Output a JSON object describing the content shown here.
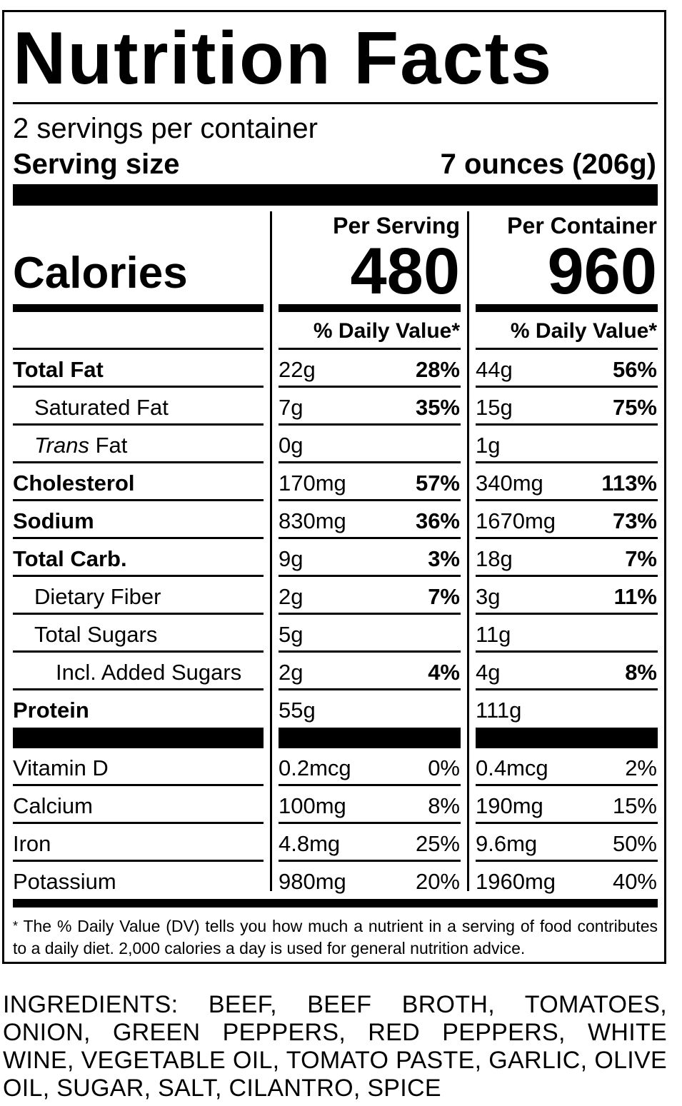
{
  "title": "Nutrition Facts",
  "servings_per_container": "2 servings per container",
  "serving_size_label": "Serving size",
  "serving_size_value": "7 ounces (206g)",
  "columns": {
    "per_serving": "Per Serving",
    "per_container": "Per Container",
    "dv_header": "% Daily Value*"
  },
  "calories": {
    "label": "Calories",
    "per_serving": "480",
    "per_container": "960"
  },
  "nutrients": [
    {
      "name": "Total Fat",
      "style": "bold",
      "serv_amt": "22g",
      "serv_dv": "28%",
      "cont_amt": "44g",
      "cont_dv": "56%"
    },
    {
      "name": "Saturated Fat",
      "style": "indent1",
      "serv_amt": "7g",
      "serv_dv": "35%",
      "cont_amt": "15g",
      "cont_dv": "75%"
    },
    {
      "name": "Fat",
      "name_prefix": "Trans",
      "style": "indent1",
      "serv_amt": "0g",
      "serv_dv": "",
      "cont_amt": "1g",
      "cont_dv": ""
    },
    {
      "name": "Cholesterol",
      "style": "bold",
      "serv_amt": "170mg",
      "serv_dv": "57%",
      "cont_amt": "340mg",
      "cont_dv": "113%"
    },
    {
      "name": "Sodium",
      "style": "bold",
      "serv_amt": "830mg",
      "serv_dv": "36%",
      "cont_amt": "1670mg",
      "cont_dv": "73%"
    },
    {
      "name": "Total Carb.",
      "style": "bold",
      "serv_amt": "9g",
      "serv_dv": "3%",
      "cont_amt": "18g",
      "cont_dv": "7%"
    },
    {
      "name": "Dietary Fiber",
      "style": "indent1",
      "serv_amt": "2g",
      "serv_dv": "7%",
      "cont_amt": "3g",
      "cont_dv": "11%"
    },
    {
      "name": "Total Sugars",
      "style": "indent1",
      "serv_amt": "5g",
      "serv_dv": "",
      "cont_amt": "11g",
      "cont_dv": ""
    },
    {
      "name": "Incl. Added Sugars",
      "style": "indent2",
      "serv_amt": "2g",
      "serv_dv": "4%",
      "cont_amt": "4g",
      "cont_dv": "8%"
    },
    {
      "name": "Protein",
      "style": "bold",
      "serv_amt": "55g",
      "serv_dv": "",
      "cont_amt": "111g",
      "cont_dv": ""
    }
  ],
  "vitamins": [
    {
      "name": "Vitamin D",
      "serv_amt": "0.2mcg",
      "serv_dv": "0%",
      "cont_amt": "0.4mcg",
      "cont_dv": "2%"
    },
    {
      "name": "Calcium",
      "serv_amt": "100mg",
      "serv_dv": "8%",
      "cont_amt": "190mg",
      "cont_dv": "15%"
    },
    {
      "name": "Iron",
      "serv_amt": "4.8mg",
      "serv_dv": "25%",
      "cont_amt": "9.6mg",
      "cont_dv": "50%"
    },
    {
      "name": "Potassium",
      "serv_amt": "980mg",
      "serv_dv": "20%",
      "cont_amt": "1960mg",
      "cont_dv": "40%"
    }
  ],
  "footnote_mark": "*",
  "footnote": "The % Daily Value (DV) tells you how much a nutrient in a serving of food contributes to a daily diet. 2,000 calories a day is used for general nutrition advice.",
  "ingredients": "INGREDIENTS: BEEF, BEEF BROTH, TOMATOES, ONION, GREEN PEPPERS, RED PEPPERS, WHITE WINE, VEGETABLE OIL, TOMATO PASTE, GARLIC, OLIVE OIL, SUGAR, SALT, CILANTRO, SPICE"
}
